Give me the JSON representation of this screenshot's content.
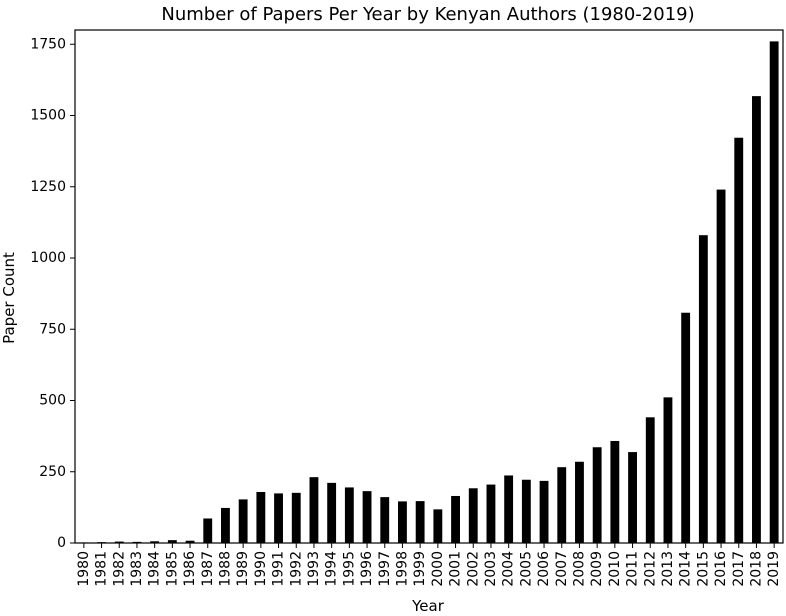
{
  "chart_data": {
    "type": "bar",
    "title": "Number of Papers Per Year by Kenyan Authors (1980-2019)",
    "xlabel": "Year",
    "ylabel": "Paper Count",
    "ylim": [
      0,
      1800
    ],
    "yticks": [
      0,
      250,
      500,
      750,
      1000,
      1250,
      1500,
      1750
    ],
    "grid": false,
    "bar_color": "#000000",
    "categories": [
      "1980",
      "1981",
      "1982",
      "1983",
      "1984",
      "1985",
      "1986",
      "1987",
      "1988",
      "1989",
      "1990",
      "1991",
      "1992",
      "1993",
      "1994",
      "1995",
      "1996",
      "1997",
      "1998",
      "1999",
      "2000",
      "2001",
      "2002",
      "2003",
      "2004",
      "2005",
      "2006",
      "2007",
      "2008",
      "2009",
      "2010",
      "2011",
      "2012",
      "2013",
      "2014",
      "2015",
      "2016",
      "2017",
      "2018",
      "2019"
    ],
    "values": [
      2,
      3,
      5,
      4,
      6,
      10,
      8,
      86,
      123,
      153,
      179,
      174,
      176,
      231,
      211,
      195,
      182,
      161,
      146,
      147,
      118,
      165,
      192,
      205,
      237,
      222,
      218,
      266,
      285,
      336,
      358,
      319,
      441,
      511,
      808,
      1080,
      1240,
      1422,
      1568,
      1760
    ]
  }
}
